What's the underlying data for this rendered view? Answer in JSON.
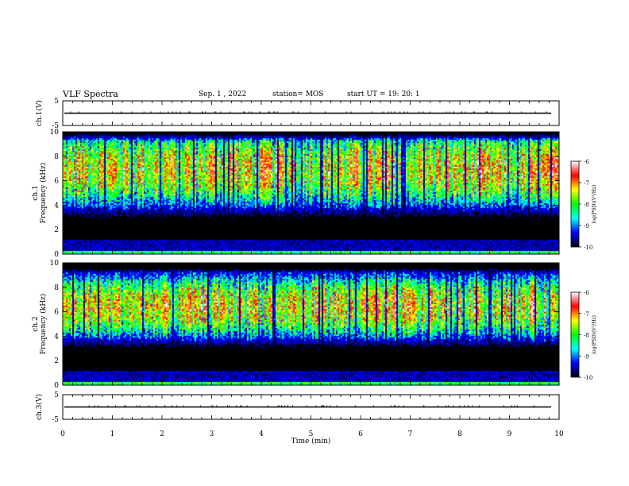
{
  "header": {
    "title": "VLF Spectra",
    "date": "Sep. 1 , 2022",
    "station": "station= MOS",
    "start": "start UT =   19: 20: 1"
  },
  "colorbar": {
    "label": "log(PSD)(V²/Hz)",
    "ticks": [
      "-6",
      "-7",
      "-8",
      "-9",
      "-10"
    ],
    "colors": [
      "#ffffff",
      "#ff0000",
      "#ffff00",
      "#00ff00",
      "#00ffff",
      "#0000ff",
      "#000000"
    ]
  },
  "chart_data": [
    {
      "type": "line",
      "panel": "ch1-waveform",
      "ylabel": "ch.1(V)",
      "ylim": [
        -5,
        5
      ],
      "yticks": [
        "5",
        "-5"
      ],
      "xlim": [
        0,
        10
      ],
      "series": [
        {
          "values": [
            0,
            0
          ]
        }
      ]
    },
    {
      "type": "heatmap",
      "panel": "ch1-spectrogram",
      "ylabel": "ch.1 Frequency (kHz)",
      "ylim": [
        0,
        10
      ],
      "yticks": [
        "10",
        "8",
        "6",
        "4",
        "2",
        "0"
      ],
      "xlim": [
        0,
        10
      ],
      "colorbar_range": [
        -10,
        -6
      ],
      "peak_band_khz": [
        5,
        9
      ]
    },
    {
      "type": "heatmap",
      "panel": "ch2-spectrogram",
      "ylabel": "ch.2 Frequency (kHz)",
      "ylim": [
        0,
        10
      ],
      "yticks": [
        "10",
        "8",
        "6",
        "4",
        "2",
        "0"
      ],
      "xlim": [
        0,
        10
      ],
      "colorbar_range": [
        -10,
        -6
      ],
      "peak_band_khz": [
        5,
        8
      ]
    },
    {
      "type": "line",
      "panel": "ch3-waveform",
      "ylabel": "ch.3(V)",
      "ylim": [
        -5,
        5
      ],
      "yticks": [
        "5",
        "-5"
      ],
      "xlim": [
        0,
        10
      ],
      "xlabel": "Time (min)",
      "xticks": [
        "0",
        "1",
        "2",
        "3",
        "4",
        "5",
        "6",
        "7",
        "8",
        "9",
        "10"
      ],
      "series": [
        {
          "values": [
            0,
            0
          ]
        }
      ]
    }
  ]
}
